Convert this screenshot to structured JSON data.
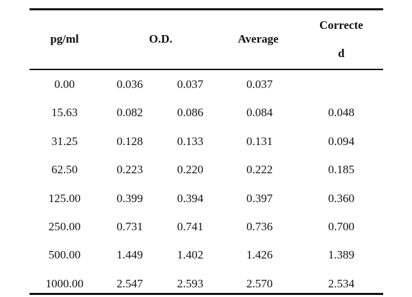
{
  "table": {
    "headers": {
      "concentration": "pg/ml",
      "od": "O.D.",
      "average": "Average",
      "corrected_line1": "Correcte",
      "corrected_line2": "d"
    },
    "rows": [
      {
        "conc": "0.00",
        "od1": "0.036",
        "od2": "0.037",
        "avg": "0.037",
        "corr": ""
      },
      {
        "conc": "15.63",
        "od1": "0.082",
        "od2": "0.086",
        "avg": "0.084",
        "corr": "0.048"
      },
      {
        "conc": "31.25",
        "od1": "0.128",
        "od2": "0.133",
        "avg": "0.131",
        "corr": "0.094"
      },
      {
        "conc": "62.50",
        "od1": "0.223",
        "od2": "0.220",
        "avg": "0.222",
        "corr": "0.185"
      },
      {
        "conc": "125.00",
        "od1": "0.399",
        "od2": "0.394",
        "avg": "0.397",
        "corr": "0.360"
      },
      {
        "conc": "250.00",
        "od1": "0.731",
        "od2": "0.741",
        "avg": "0.736",
        "corr": "0.700"
      },
      {
        "conc": "500.00",
        "od1": "1.449",
        "od2": "1.402",
        "avg": "1.426",
        "corr": "1.389"
      },
      {
        "conc": "1000.00",
        "od1": "2.547",
        "od2": "2.593",
        "avg": "2.570",
        "corr": "2.534"
      }
    ]
  }
}
